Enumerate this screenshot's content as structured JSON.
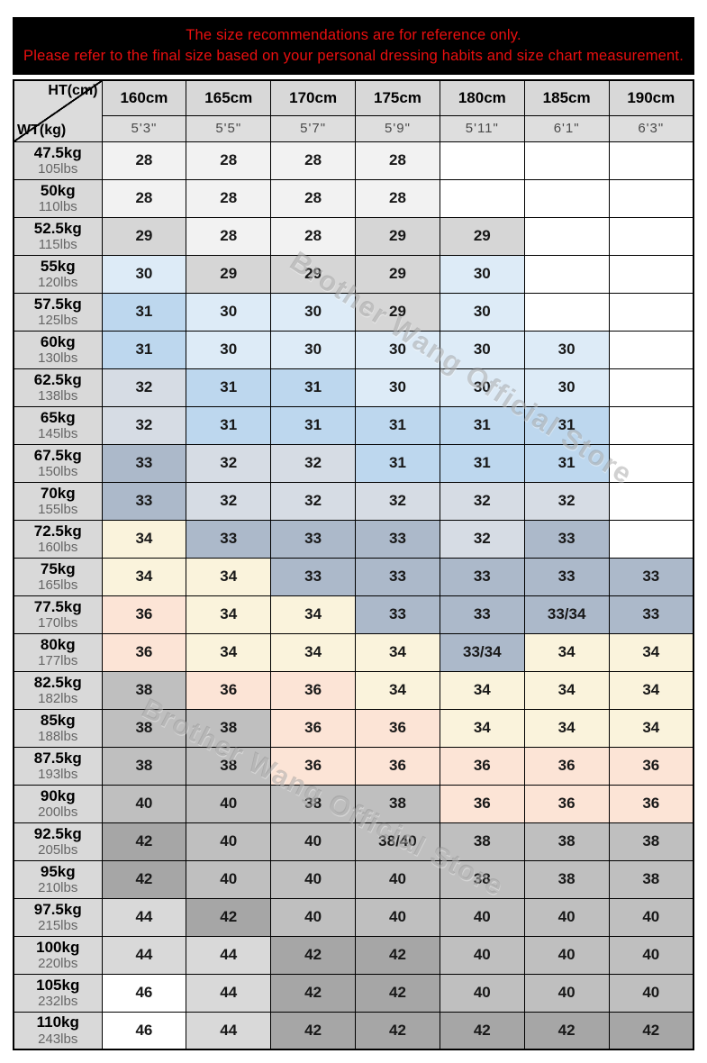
{
  "banner": {
    "line1": "The size recommendations are for reference only.",
    "line2": "Please refer to the final size based on your personal dressing habits and size chart measurement.",
    "bg": "#000000",
    "text_color": "#ea0f0f"
  },
  "watermark": {
    "text": "Brother Wang Official Store"
  },
  "corner": {
    "top": "HT(cm)",
    "bottom": "WT(kg)"
  },
  "chart_data": {
    "type": "table",
    "columns_cm": [
      "160cm",
      "165cm",
      "170cm",
      "175cm",
      "180cm",
      "185cm",
      "190cm"
    ],
    "columns_ft": [
      "5'3\"",
      "5'5\"",
      "5'7\"",
      "5'9\"",
      "5'11\"",
      "6'1\"",
      "6'3\""
    ],
    "rows": [
      {
        "kg": "47.5kg",
        "lbs": "105lbs",
        "sizes": [
          "28",
          "28",
          "28",
          "28",
          "",
          "",
          ""
        ]
      },
      {
        "kg": "50kg",
        "lbs": "110lbs",
        "sizes": [
          "28",
          "28",
          "28",
          "28",
          "",
          "",
          ""
        ]
      },
      {
        "kg": "52.5kg",
        "lbs": "115lbs",
        "sizes": [
          "29",
          "28",
          "28",
          "29",
          "29",
          "",
          ""
        ]
      },
      {
        "kg": "55kg",
        "lbs": "120lbs",
        "sizes": [
          "30",
          "29",
          "29",
          "29",
          "30",
          "",
          ""
        ]
      },
      {
        "kg": "57.5kg",
        "lbs": "125lbs",
        "sizes": [
          "31",
          "30",
          "30",
          "29",
          "30",
          "",
          ""
        ]
      },
      {
        "kg": "60kg",
        "lbs": "130lbs",
        "sizes": [
          "31",
          "30",
          "30",
          "30",
          "30",
          "30",
          ""
        ]
      },
      {
        "kg": "62.5kg",
        "lbs": "138lbs",
        "sizes": [
          "32",
          "31",
          "31",
          "30",
          "30",
          "30",
          ""
        ]
      },
      {
        "kg": "65kg",
        "lbs": "145lbs",
        "sizes": [
          "32",
          "31",
          "31",
          "31",
          "31",
          "31",
          ""
        ]
      },
      {
        "kg": "67.5kg",
        "lbs": "150lbs",
        "sizes": [
          "33",
          "32",
          "32",
          "31",
          "31",
          "31",
          ""
        ]
      },
      {
        "kg": "70kg",
        "lbs": "155lbs",
        "sizes": [
          "33",
          "32",
          "32",
          "32",
          "32",
          "32",
          ""
        ]
      },
      {
        "kg": "72.5kg",
        "lbs": "160lbs",
        "sizes": [
          "34",
          "33",
          "33",
          "33",
          "32",
          "33",
          ""
        ]
      },
      {
        "kg": "75kg",
        "lbs": "165lbs",
        "sizes": [
          "34",
          "34",
          "33",
          "33",
          "33",
          "33",
          "33"
        ]
      },
      {
        "kg": "77.5kg",
        "lbs": "170lbs",
        "sizes": [
          "36",
          "34",
          "34",
          "33",
          "33",
          "33/34",
          "33"
        ]
      },
      {
        "kg": "80kg",
        "lbs": "177lbs",
        "sizes": [
          "36",
          "34",
          "34",
          "34",
          "33/34",
          "34",
          "34"
        ]
      },
      {
        "kg": "82.5kg",
        "lbs": "182lbs",
        "sizes": [
          "38",
          "36",
          "36",
          "34",
          "34",
          "34",
          "34"
        ]
      },
      {
        "kg": "85kg",
        "lbs": "188lbs",
        "sizes": [
          "38",
          "38",
          "36",
          "36",
          "34",
          "34",
          "34"
        ]
      },
      {
        "kg": "87.5kg",
        "lbs": "193lbs",
        "sizes": [
          "38",
          "38",
          "36",
          "36",
          "36",
          "36",
          "36"
        ]
      },
      {
        "kg": "90kg",
        "lbs": "200lbs",
        "sizes": [
          "40",
          "40",
          "38",
          "38",
          "36",
          "36",
          "36"
        ]
      },
      {
        "kg": "92.5kg",
        "lbs": "205lbs",
        "sizes": [
          "42",
          "40",
          "40",
          "38/40",
          "38",
          "38",
          "38"
        ]
      },
      {
        "kg": "95kg",
        "lbs": "210lbs",
        "sizes": [
          "42",
          "40",
          "40",
          "40",
          "38",
          "38",
          "38"
        ]
      },
      {
        "kg": "97.5kg",
        "lbs": "215lbs",
        "sizes": [
          "44",
          "42",
          "40",
          "40",
          "40",
          "40",
          "40"
        ]
      },
      {
        "kg": "100kg",
        "lbs": "220lbs",
        "sizes": [
          "44",
          "44",
          "42",
          "42",
          "40",
          "40",
          "40"
        ]
      },
      {
        "kg": "105kg",
        "lbs": "232lbs",
        "sizes": [
          "46",
          "44",
          "42",
          "42",
          "40",
          "40",
          "40"
        ]
      },
      {
        "kg": "110kg",
        "lbs": "243lbs",
        "sizes": [
          "46",
          "44",
          "42",
          "42",
          "42",
          "42",
          "42"
        ]
      }
    ],
    "size_colors": {
      "": "#ffffff",
      "28": "#f2f2f2",
      "29": "#d6d6d6",
      "30": "#ddebf7",
      "31": "#bdd7ee",
      "32": "#d6dce4",
      "33": "#acb9ca",
      "33/34": "#acb9ca",
      "34": "#faf3dc",
      "36": "#fce4d6",
      "38": "#bfbfbf",
      "38/40": "#bfbfbf",
      "40": "#bfbfbf",
      "42": "#a6a6a6",
      "44": "#d9d9d9",
      "46": "#ffffff"
    },
    "layout": {
      "grid_color": "#000000",
      "header_bg": "#d9d9d9"
    }
  }
}
